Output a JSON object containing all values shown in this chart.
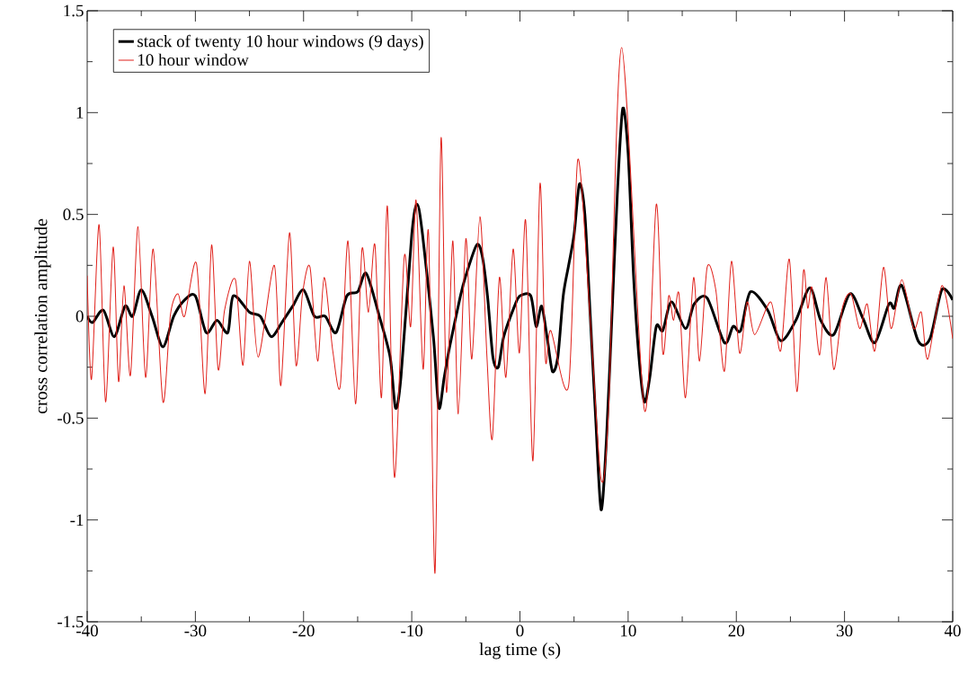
{
  "chart_data": {
    "type": "line",
    "xlabel": "lag time (s)",
    "ylabel": "cross correlation amplitude",
    "xlim": [
      -40,
      40
    ],
    "ylim": [
      -1.5,
      1.5
    ],
    "xticks": [
      -40,
      -30,
      -20,
      -10,
      0,
      10,
      20,
      30,
      40
    ],
    "yticks": [
      -1.5,
      -1,
      -0.5,
      0,
      0.5,
      1,
      1.5
    ],
    "legend": "top left",
    "series": [
      {
        "name": "stack of twenty 10 hour windows (9 days)",
        "color": "#000000",
        "x": [
          -40,
          -39.5,
          -38.5,
          -37.5,
          -36.5,
          -35.8,
          -35,
          -34,
          -33,
          -32,
          -31,
          -30,
          -29,
          -28,
          -27,
          -26.5,
          -25,
          -24,
          -23,
          -22,
          -21,
          -20,
          -19,
          -18,
          -17,
          -16,
          -15,
          -14.2,
          -13,
          -12,
          -11.5,
          -11,
          -10,
          -9.5,
          -9,
          -8,
          -7.5,
          -7,
          -6.5,
          -5.5,
          -5,
          -4,
          -3.5,
          -3,
          -2.5,
          -2,
          -1.5,
          -0.5,
          0,
          1,
          1.5,
          2,
          2.5,
          3,
          3.5,
          4,
          4.5,
          5,
          5.5,
          6,
          6.5,
          7,
          7.5,
          8,
          8.5,
          9,
          9.5,
          10,
          10.5,
          11,
          11.5,
          12,
          12.6,
          13.2,
          14,
          15.3,
          16.1,
          17.3,
          18.9,
          19.7,
          20.4,
          21.3,
          22.9,
          24.1,
          25.5,
          26.8,
          27.8,
          29,
          30.5,
          31.7,
          32.8,
          34.1,
          34.6,
          35.3,
          36.8,
          37.9,
          39,
          40
        ],
        "values": [
          0,
          -0.03,
          0.03,
          -0.1,
          0.05,
          0,
          0.13,
          0,
          -0.15,
          0,
          0.08,
          0.1,
          -0.08,
          -0.02,
          -0.08,
          0.1,
          0.02,
          0,
          -0.1,
          -0.03,
          0.05,
          0.13,
          0,
          0,
          -0.08,
          0.1,
          0.12,
          0.21,
          0,
          -0.2,
          -0.45,
          -0.3,
          0.4,
          0.55,
          0.4,
          -0.1,
          -0.45,
          -0.3,
          -0.15,
          0.1,
          0.2,
          0.35,
          0.3,
          0.1,
          -0.2,
          -0.25,
          -0.1,
          0.05,
          0.1,
          0.1,
          -0.05,
          0.05,
          -0.1,
          -0.27,
          -0.2,
          0.1,
          0.25,
          0.4,
          0.65,
          0.5,
          0,
          -0.5,
          -0.95,
          -0.6,
          0,
          0.6,
          1.02,
          0.8,
          0.2,
          -0.2,
          -0.42,
          -0.3,
          -0.05,
          -0.07,
          0.07,
          -0.06,
          0.06,
          0.09,
          -0.13,
          -0.05,
          -0.07,
          0.12,
          0.03,
          -0.12,
          -0.02,
          0.14,
          -0.02,
          -0.09,
          0.11,
          -0.01,
          -0.13,
          0.06,
          0.04,
          0.15,
          -0.12,
          -0.11,
          0.13,
          0.08
        ]
      },
      {
        "name": "10 hour window",
        "color": "#e0201a",
        "x": [
          -40,
          -39.6,
          -38.9,
          -38.3,
          -37.6,
          -37.1,
          -36.6,
          -36,
          -35.3,
          -34.6,
          -33.9,
          -33,
          -32.3,
          -31.6,
          -31,
          -29.9,
          -29.1,
          -28.5,
          -27.9,
          -27.3,
          -26.3,
          -25.6,
          -25,
          -24.2,
          -22.7,
          -22.1,
          -21.3,
          -20.7,
          -20.1,
          -19.4,
          -18.7,
          -18.1,
          -17.3,
          -16.6,
          -15.9,
          -15.2,
          -14.6,
          -14,
          -13.4,
          -12.8,
          -12.25,
          -11.6,
          -10.7,
          -10.1,
          -9.6,
          -8.95,
          -8.45,
          -7.85,
          -7.3,
          -6.8,
          -6.2,
          -5.7,
          -5,
          -4.45,
          -3.7,
          -3.05,
          -2.55,
          -1.9,
          -1.3,
          -0.63,
          -0.05,
          0.53,
          1.2,
          1.85,
          2.35,
          2.85,
          4.5,
          5.35,
          6.5,
          7.5,
          8.2,
          9.4,
          11.5,
          12.6,
          13.2,
          13.75,
          14.2,
          14.7,
          15.3,
          16.05,
          16.6,
          17.3,
          18.1,
          18.9,
          19.55,
          20.3,
          21,
          21.7,
          23.2,
          24.1,
          24.9,
          25.6,
          26.2,
          26.6,
          27,
          27.7,
          28.3,
          29,
          29.8,
          30.6,
          31.4,
          32.1,
          32.8,
          33.6,
          34.3,
          35.3,
          36.4,
          37.1,
          37.7,
          39,
          40
        ],
        "values": [
          0.2,
          -0.31,
          0.45,
          -0.42,
          0.34,
          -0.32,
          0.15,
          -0.29,
          0.44,
          -0.3,
          0.33,
          -0.42,
          0.01,
          0.11,
          0,
          0.26,
          -0.38,
          0.35,
          -0.26,
          0.03,
          0.18,
          -0.24,
          0.27,
          -0.2,
          0.25,
          -0.34,
          0.41,
          -0.24,
          0.11,
          0.24,
          -0.22,
          0.19,
          -0.17,
          -0.34,
          0.37,
          -0.43,
          0.33,
          0.02,
          0.35,
          -0.4,
          0.54,
          -0.79,
          0.29,
          -0.05,
          0.57,
          -0.26,
          0.41,
          -1.26,
          0.87,
          -0.37,
          0.37,
          -0.48,
          0.38,
          -0.21,
          0.49,
          -0.2,
          -0.6,
          0.19,
          -0.3,
          0.33,
          -0.18,
          0.47,
          -0.71,
          0.65,
          -0.21,
          -0.07,
          -0.34,
          0.77,
          -0.02,
          -0.8,
          -0.45,
          1.32,
          -0.46,
          0.55,
          -0.18,
          0.1,
          -0.02,
          0.11,
          -0.4,
          0.19,
          -0.22,
          0.24,
          0.13,
          -0.27,
          0.27,
          -0.18,
          0.07,
          -0.09,
          0.07,
          -0.17,
          0.28,
          -0.37,
          0.22,
          0.04,
          0.14,
          -0.19,
          0.19,
          -0.26,
          0.04,
          0.11,
          -0.06,
          0.06,
          -0.17,
          0.24,
          -0.06,
          0.18,
          -0.06,
          0.02,
          -0.21,
          0.15,
          -0.11
        ]
      }
    ]
  }
}
